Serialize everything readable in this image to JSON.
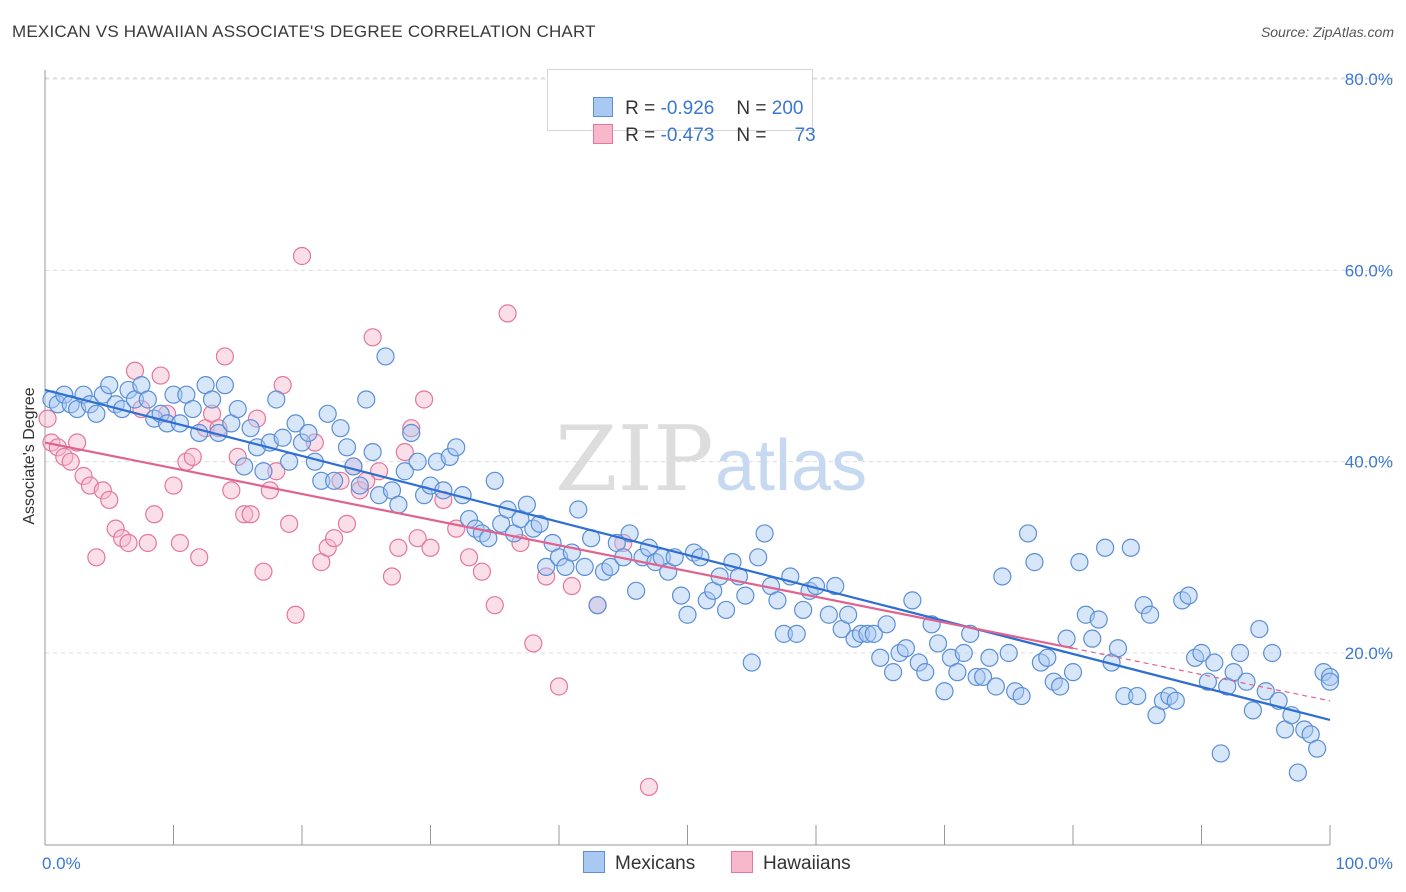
{
  "title": "MEXICAN VS HAWAIIAN ASSOCIATE'S DEGREE CORRELATION CHART",
  "source": "Source: ZipAtlas.com",
  "watermark": {
    "zip": "ZIP",
    "atlas": "atlas"
  },
  "colors": {
    "mexicans_fill": "#a9c8f2",
    "mexicans_stroke": "#5b8fd6",
    "mexicans_line": "#2f6fd1",
    "hawaiians_fill": "#f7b8cc",
    "hawaiians_stroke": "#e4779c",
    "hawaiians_line": "#e0628e",
    "axis_text": "#3b78d0",
    "grid": "#dcdcdc"
  },
  "legend": {
    "mexicans": {
      "r_label": "R = ",
      "r_value": "-0.926",
      "n_label": "N = ",
      "n_value": "200"
    },
    "hawaiians": {
      "r_label": "R = ",
      "r_value": "-0.473",
      "n_label": "N = ",
      "n_value": "73"
    }
  },
  "bottom_legend": {
    "mexicans": "Mexicans",
    "hawaiians": "Hawaiians"
  },
  "chart_data": {
    "type": "scatter",
    "title": "MEXICAN VS HAWAIIAN ASSOCIATE'S DEGREE CORRELATION CHART",
    "xlabel": "",
    "ylabel": "Associate's Degree",
    "xlim": [
      0,
      100
    ],
    "ylim": [
      0,
      82
    ],
    "x_tick_labels": [
      "0.0%",
      "100.0%"
    ],
    "y_ticks": [
      20,
      40,
      60,
      80
    ],
    "y_tick_labels": [
      "20.0%",
      "40.0%",
      "60.0%",
      "80.0%"
    ],
    "grid": true,
    "legend_position": "top-center",
    "series": [
      {
        "name": "Mexicans",
        "r": -0.926,
        "n": 200,
        "trend": {
          "x": [
            0,
            100
          ],
          "y": [
            47.5,
            13.0
          ]
        },
        "points": [
          [
            0.5,
            46.5
          ],
          [
            1,
            46
          ],
          [
            1.5,
            47
          ],
          [
            2,
            46
          ],
          [
            2.5,
            45.5
          ],
          [
            3,
            47
          ],
          [
            3.5,
            46
          ],
          [
            4,
            45
          ],
          [
            4.5,
            47
          ],
          [
            5,
            48
          ],
          [
            5.5,
            46
          ],
          [
            6,
            45.5
          ],
          [
            6.5,
            47.5
          ],
          [
            7,
            46.5
          ],
          [
            7.5,
            48
          ],
          [
            8,
            46.5
          ],
          [
            8.5,
            44.5
          ],
          [
            9,
            45
          ],
          [
            9.5,
            44
          ],
          [
            10,
            47
          ],
          [
            10.5,
            44
          ],
          [
            11,
            47
          ],
          [
            11.5,
            45.5
          ],
          [
            12,
            43
          ],
          [
            12.5,
            48
          ],
          [
            13,
            46.5
          ],
          [
            13.5,
            43
          ],
          [
            14,
            48
          ],
          [
            14.5,
            44
          ],
          [
            15,
            45.5
          ],
          [
            15.5,
            39.5
          ],
          [
            16,
            43.5
          ],
          [
            16.5,
            41.5
          ],
          [
            17,
            39
          ],
          [
            17.5,
            42
          ],
          [
            18,
            46.5
          ],
          [
            18.5,
            42.5
          ],
          [
            19,
            40
          ],
          [
            19.5,
            44
          ],
          [
            20,
            42
          ],
          [
            20.5,
            43
          ],
          [
            21,
            40
          ],
          [
            21.5,
            38
          ],
          [
            22,
            45
          ],
          [
            22.5,
            38
          ],
          [
            23,
            43.5
          ],
          [
            23.5,
            41.5
          ],
          [
            24,
            39.5
          ],
          [
            24.5,
            37.5
          ],
          [
            25,
            46.5
          ],
          [
            25.5,
            41
          ],
          [
            26,
            36.5
          ],
          [
            26.5,
            51
          ],
          [
            27,
            37
          ],
          [
            27.5,
            35.5
          ],
          [
            28,
            39
          ],
          [
            28.5,
            43
          ],
          [
            29,
            40
          ],
          [
            29.5,
            36.5
          ],
          [
            30,
            37.5
          ],
          [
            30.5,
            40
          ],
          [
            31,
            37
          ],
          [
            31.5,
            40.5
          ],
          [
            32,
            41.5
          ],
          [
            32.5,
            36.5
          ],
          [
            33,
            34
          ],
          [
            33.5,
            33
          ],
          [
            34,
            32.5
          ],
          [
            34.5,
            32
          ],
          [
            35,
            38
          ],
          [
            35.5,
            33.5
          ],
          [
            36,
            35
          ],
          [
            36.5,
            32.5
          ],
          [
            37,
            34
          ],
          [
            37.5,
            35.5
          ],
          [
            38,
            33
          ],
          [
            38.5,
            33.5
          ],
          [
            39,
            29
          ],
          [
            39.5,
            31.5
          ],
          [
            40,
            30
          ],
          [
            40.5,
            29
          ],
          [
            41,
            30.5
          ],
          [
            41.5,
            35
          ],
          [
            42,
            29
          ],
          [
            42.5,
            32
          ],
          [
            43,
            25
          ],
          [
            43.5,
            28.5
          ],
          [
            44,
            29
          ],
          [
            44.5,
            31.5
          ],
          [
            45,
            30
          ],
          [
            45.5,
            32.5
          ],
          [
            46,
            26.5
          ],
          [
            46.5,
            30
          ],
          [
            47,
            31
          ],
          [
            47.5,
            29.5
          ],
          [
            48,
            30
          ],
          [
            48.5,
            28.5
          ],
          [
            49,
            30
          ],
          [
            49.5,
            26
          ],
          [
            50,
            24
          ],
          [
            50.5,
            30.5
          ],
          [
            51,
            30
          ],
          [
            51.5,
            25.5
          ],
          [
            52,
            26.5
          ],
          [
            52.5,
            28
          ],
          [
            53,
            24.5
          ],
          [
            53.5,
            29.5
          ],
          [
            54,
            28
          ],
          [
            54.5,
            26
          ],
          [
            55,
            19
          ],
          [
            55.5,
            30
          ],
          [
            56,
            32.5
          ],
          [
            56.5,
            27
          ],
          [
            57,
            25.5
          ],
          [
            57.5,
            22
          ],
          [
            58,
            28
          ],
          [
            58.5,
            22
          ],
          [
            59,
            24.5
          ],
          [
            59.5,
            26.5
          ],
          [
            60,
            27
          ],
          [
            61,
            24
          ],
          [
            61.5,
            27
          ],
          [
            62,
            22.5
          ],
          [
            62.5,
            24
          ],
          [
            63,
            21.5
          ],
          [
            63.5,
            22
          ],
          [
            64,
            22
          ],
          [
            64.5,
            22
          ],
          [
            65,
            19.5
          ],
          [
            65.5,
            23
          ],
          [
            66,
            18
          ],
          [
            66.5,
            20
          ],
          [
            67,
            20.5
          ],
          [
            67.5,
            25.5
          ],
          [
            68,
            19
          ],
          [
            68.5,
            18
          ],
          [
            69,
            23
          ],
          [
            69.5,
            21
          ],
          [
            70,
            16
          ],
          [
            70.5,
            19.5
          ],
          [
            71,
            18
          ],
          [
            71.5,
            20
          ],
          [
            72,
            22
          ],
          [
            72.5,
            17.5
          ],
          [
            73,
            17.5
          ],
          [
            73.5,
            19.5
          ],
          [
            74,
            16.5
          ],
          [
            74.5,
            28
          ],
          [
            75,
            20
          ],
          [
            75.5,
            16
          ],
          [
            76,
            15.5
          ],
          [
            76.5,
            32.5
          ],
          [
            77,
            29.5
          ],
          [
            77.5,
            19
          ],
          [
            78,
            19.5
          ],
          [
            78.5,
            17
          ],
          [
            79,
            16.5
          ],
          [
            79.5,
            21.5
          ],
          [
            80,
            18
          ],
          [
            80.5,
            29.5
          ],
          [
            81,
            24
          ],
          [
            81.5,
            21.5
          ],
          [
            82,
            23.5
          ],
          [
            82.5,
            31
          ],
          [
            83,
            19
          ],
          [
            83.5,
            20.5
          ],
          [
            84,
            15.5
          ],
          [
            84.5,
            31
          ],
          [
            85,
            15.5
          ],
          [
            85.5,
            25
          ],
          [
            86,
            24
          ],
          [
            86.5,
            13.5
          ],
          [
            87,
            15
          ],
          [
            87.5,
            15.5
          ],
          [
            88,
            15
          ],
          [
            88.5,
            25.5
          ],
          [
            89,
            26
          ],
          [
            89.5,
            19.5
          ],
          [
            90,
            20
          ],
          [
            90.5,
            17
          ],
          [
            91,
            19
          ],
          [
            91.5,
            9.5
          ],
          [
            92,
            16.5
          ],
          [
            92.5,
            18
          ],
          [
            93,
            20
          ],
          [
            93.5,
            17
          ],
          [
            94,
            14
          ],
          [
            94.5,
            22.5
          ],
          [
            95,
            16
          ],
          [
            95.5,
            20
          ],
          [
            96,
            15
          ],
          [
            96.5,
            12
          ],
          [
            97,
            13.5
          ],
          [
            97.5,
            7.5
          ],
          [
            98,
            12
          ],
          [
            98.5,
            11.5
          ],
          [
            99,
            10
          ],
          [
            99.5,
            18
          ],
          [
            100,
            17.5
          ],
          [
            100,
            17
          ]
        ]
      },
      {
        "name": "Hawaiians",
        "r": -0.473,
        "n": 73,
        "trend": {
          "x": [
            0,
            80
          ],
          "y": [
            42,
            20.5
          ]
        },
        "trend_dashed": {
          "x": [
            80,
            100
          ],
          "y": [
            20.5,
            15.0
          ]
        },
        "points": [
          [
            0.2,
            44.5
          ],
          [
            0.5,
            42
          ],
          [
            1,
            41.5
          ],
          [
            1.5,
            40.5
          ],
          [
            2,
            40
          ],
          [
            2.5,
            42
          ],
          [
            3,
            38.5
          ],
          [
            3.5,
            37.5
          ],
          [
            4,
            30
          ],
          [
            4.5,
            37
          ],
          [
            5,
            36
          ],
          [
            5.5,
            33
          ],
          [
            6,
            32
          ],
          [
            6.5,
            31.5
          ],
          [
            7,
            49.5
          ],
          [
            7.5,
            45.5
          ],
          [
            8,
            31.5
          ],
          [
            8.5,
            34.5
          ],
          [
            9,
            49
          ],
          [
            9.5,
            45
          ],
          [
            10,
            37.5
          ],
          [
            10.5,
            31.5
          ],
          [
            11,
            40
          ],
          [
            11.5,
            40.5
          ],
          [
            12,
            30
          ],
          [
            12.5,
            43.5
          ],
          [
            13,
            45
          ],
          [
            13.5,
            43.5
          ],
          [
            14,
            51
          ],
          [
            14.5,
            37
          ],
          [
            15,
            40.5
          ],
          [
            15.5,
            34.5
          ],
          [
            16,
            34.5
          ],
          [
            16.5,
            44.5
          ],
          [
            17,
            28.5
          ],
          [
            17.5,
            37
          ],
          [
            18,
            39
          ],
          [
            18.5,
            48
          ],
          [
            19,
            33.5
          ],
          [
            19.5,
            24
          ],
          [
            20,
            61.5
          ],
          [
            21,
            42
          ],
          [
            21.5,
            29.5
          ],
          [
            22,
            31
          ],
          [
            22.5,
            32
          ],
          [
            23,
            38
          ],
          [
            23.5,
            33.5
          ],
          [
            24,
            39.5
          ],
          [
            24.5,
            37
          ],
          [
            25,
            38
          ],
          [
            25.5,
            53
          ],
          [
            26,
            39
          ],
          [
            27,
            28
          ],
          [
            27.5,
            31
          ],
          [
            28,
            41
          ],
          [
            28.5,
            43.5
          ],
          [
            29,
            32
          ],
          [
            29.5,
            46.5
          ],
          [
            30,
            31
          ],
          [
            31,
            36
          ],
          [
            32,
            33
          ],
          [
            33,
            30
          ],
          [
            34,
            28.5
          ],
          [
            35,
            25
          ],
          [
            36,
            55.5
          ],
          [
            37,
            31.5
          ],
          [
            38,
            21
          ],
          [
            39,
            28
          ],
          [
            40,
            16.5
          ],
          [
            41,
            27
          ],
          [
            43,
            25
          ],
          [
            45,
            31.5
          ],
          [
            47,
            6
          ]
        ]
      }
    ]
  }
}
